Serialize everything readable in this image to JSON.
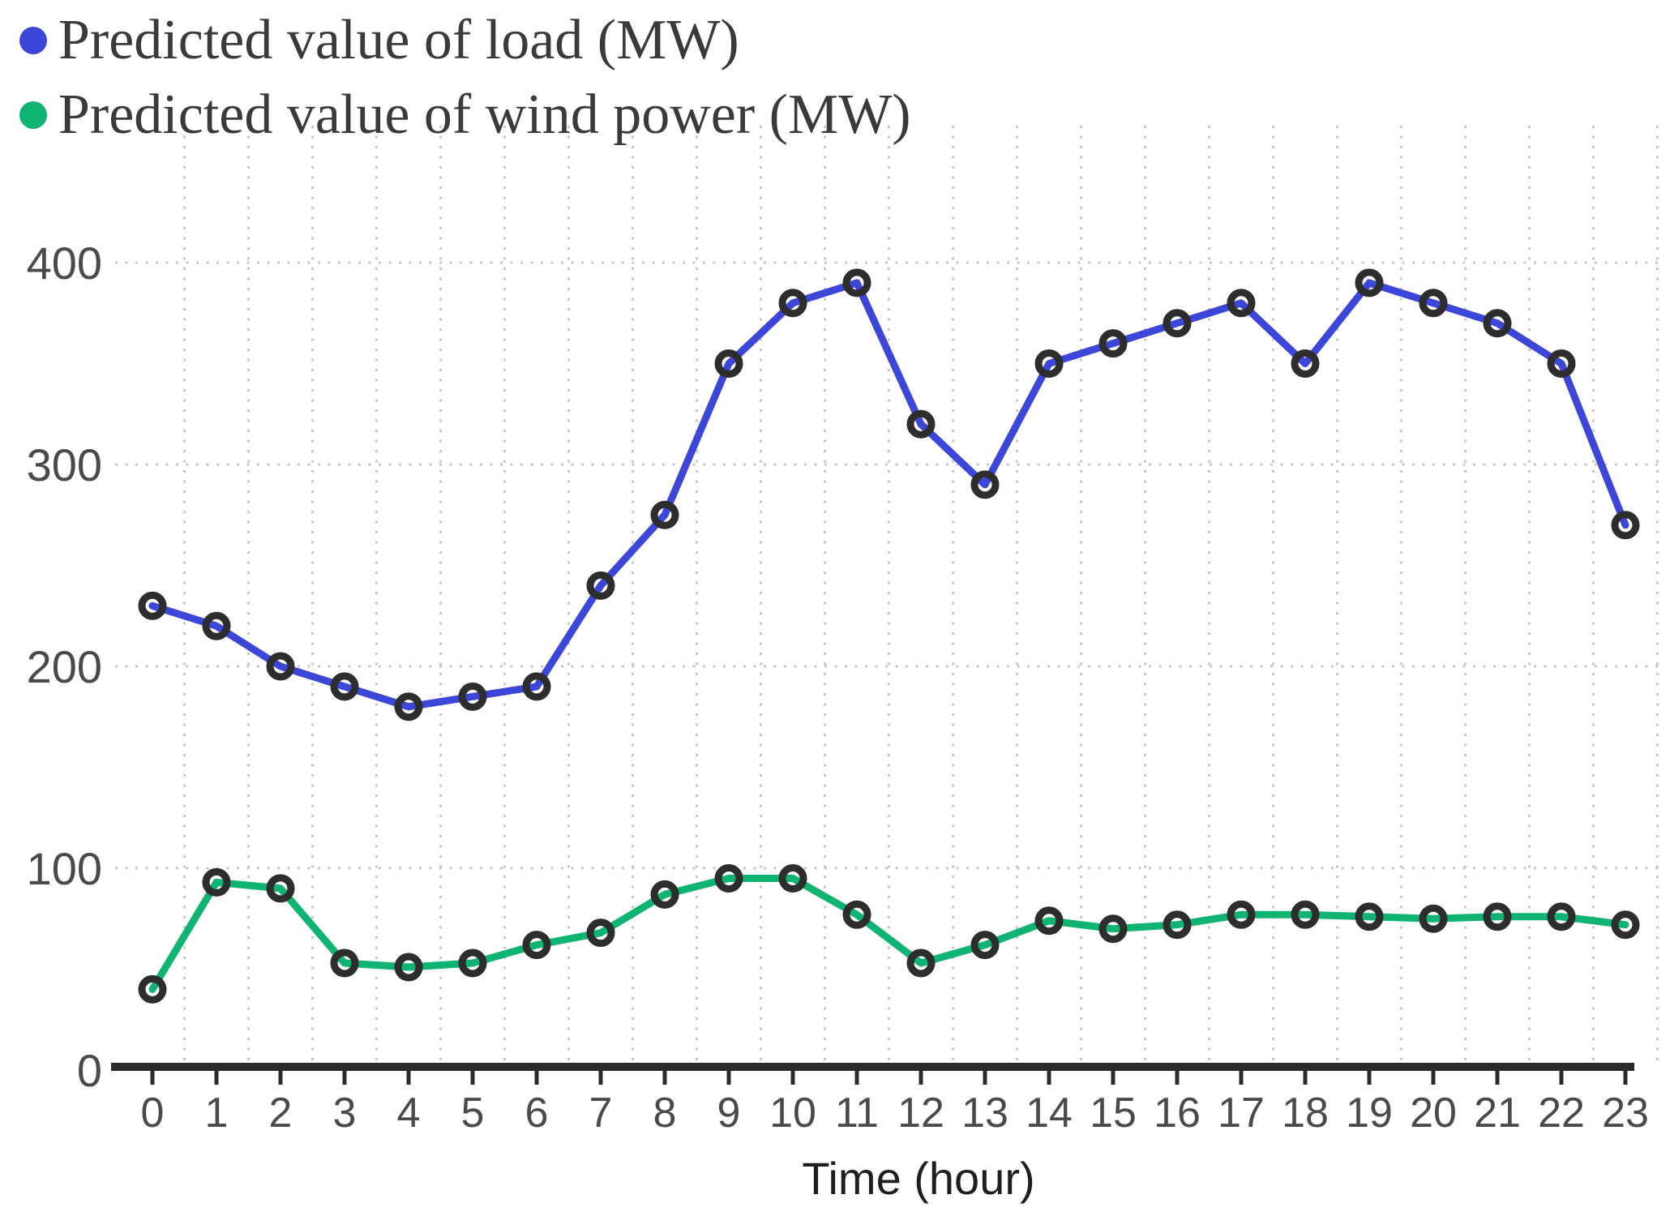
{
  "legend": {
    "items": [
      {
        "label": "Predicted value of load (MW)",
        "color": "#3c46d8"
      },
      {
        "label": "Predicted value of wind power (MW)",
        "color": "#10b472"
      }
    ]
  },
  "chart_data": {
    "type": "line",
    "x": [
      0,
      1,
      2,
      3,
      4,
      5,
      6,
      7,
      8,
      9,
      10,
      11,
      12,
      13,
      14,
      15,
      16,
      17,
      18,
      19,
      20,
      21,
      22,
      23
    ],
    "xlabel": "Time (hour)",
    "ylabel": "",
    "ylim": [
      0,
      440
    ],
    "yticks": [
      0,
      100,
      200,
      300,
      400
    ],
    "grid": true,
    "legend_position": "top-left",
    "marker_style": "open-circle",
    "series": [
      {
        "name": "Predicted value of load (MW)",
        "color": "#3c46d8",
        "values": [
          230,
          220,
          200,
          190,
          180,
          185,
          190,
          240,
          275,
          350,
          380,
          390,
          320,
          290,
          350,
          360,
          370,
          380,
          350,
          390,
          380,
          370,
          350,
          270
        ]
      },
      {
        "name": "Predicted value of wind power (MW)",
        "color": "#10b472",
        "values": [
          40,
          93,
          90,
          53,
          51,
          53,
          62,
          68,
          87,
          95,
          95,
          77,
          53,
          62,
          74,
          70,
          72,
          77,
          77,
          76,
          75,
          76,
          76,
          72
        ]
      }
    ]
  },
  "colors": {
    "background": "#ffffff",
    "axis": "#2b2b2b",
    "grid": "#c7c7c7",
    "marker_ring": "#2d2d2d",
    "tick_label": "#4a4a4a",
    "legend_text": "#3a3a3a"
  }
}
